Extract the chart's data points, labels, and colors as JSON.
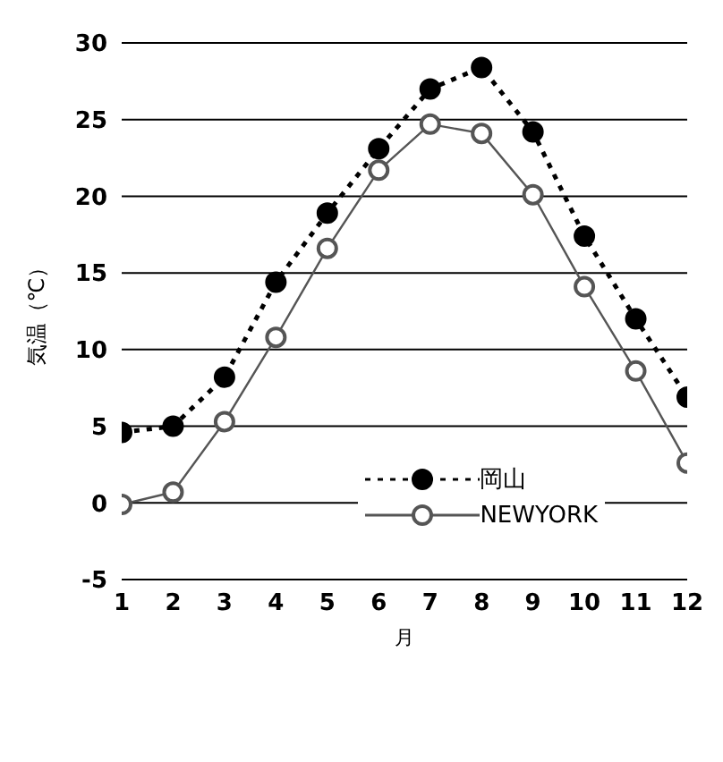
{
  "chart_data": {
    "type": "line",
    "xlabel": "月",
    "ylabel": "気温（℃）",
    "x": [
      1,
      2,
      3,
      4,
      5,
      6,
      7,
      8,
      9,
      10,
      11,
      12
    ],
    "series": [
      {
        "name": "岡山",
        "color": "#000000",
        "line_style": "dotted",
        "values": [
          4.6,
          5.0,
          8.2,
          14.4,
          18.9,
          23.1,
          27.0,
          28.4,
          24.2,
          17.4,
          12.0,
          6.9
        ]
      },
      {
        "name": "NEWYORK",
        "color": "#555555",
        "line_style": "solid",
        "values": [
          -0.1,
          0.7,
          5.3,
          10.8,
          16.6,
          21.7,
          24.7,
          24.1,
          20.1,
          14.1,
          8.6,
          2.6
        ]
      }
    ],
    "xlim": [
      1,
      12
    ],
    "xticks": [
      1,
      2,
      3,
      4,
      5,
      6,
      7,
      8,
      9,
      10,
      11,
      12
    ],
    "ylim": [
      -5,
      30
    ],
    "yticks": [
      -5,
      0,
      5,
      10,
      15,
      20,
      25,
      30
    ],
    "grid": "y",
    "legend": "bottom right",
    "marker": "circle"
  }
}
